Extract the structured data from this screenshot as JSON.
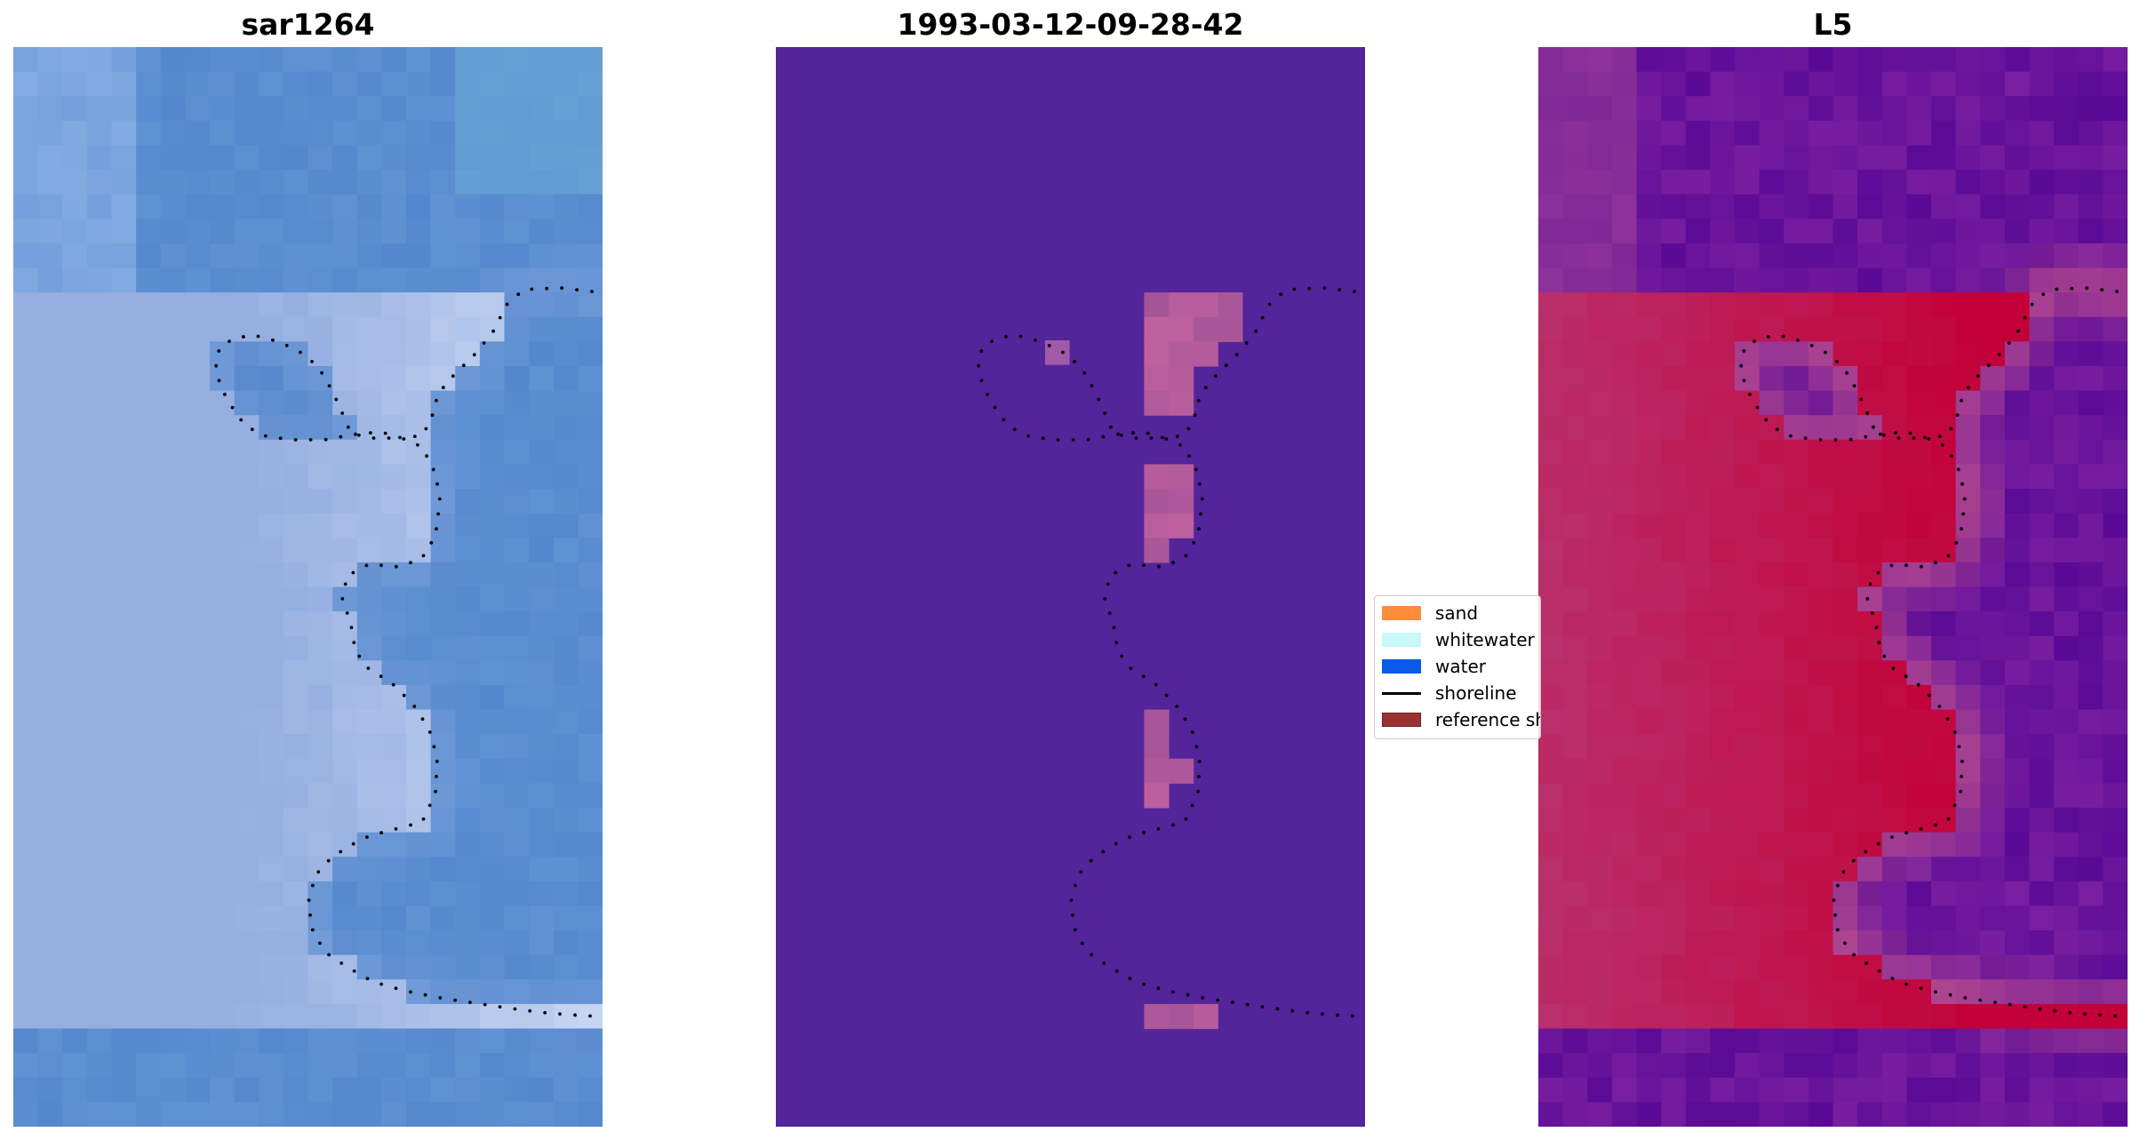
{
  "panels": [
    {
      "title": "sar1264",
      "colormap": "rgb-composite"
    },
    {
      "title": "1993-03-12-09-28-42",
      "colormap": "classification"
    },
    {
      "title": "L5",
      "colormap": "index"
    }
  ],
  "legend": {
    "items": [
      {
        "label": "sand",
        "color": "#ff8c3a",
        "icon": "patch"
      },
      {
        "label": "whitewater",
        "color": "#c8f8f8",
        "icon": "patch"
      },
      {
        "label": "water",
        "color": "#0a5ae8",
        "icon": "patch"
      },
      {
        "label": "shoreline",
        "color": "#000000",
        "icon": "line"
      },
      {
        "label": "reference shoreline",
        "color": "#9b3232",
        "icon": "patch"
      }
    ]
  }
}
